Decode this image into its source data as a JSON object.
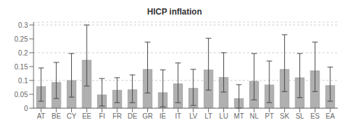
{
  "chart_data": {
    "type": "bar",
    "title": "HICP inflation",
    "categories": [
      "AT",
      "BE",
      "CY",
      "EE",
      "FI",
      "FR",
      "DE",
      "GR",
      "IE",
      "IT",
      "LV",
      "LT",
      "LU",
      "MT",
      "NL",
      "PT",
      "SK",
      "SL",
      "ES",
      "EA"
    ],
    "values": [
      0.078,
      0.093,
      0.1,
      0.173,
      0.048,
      0.065,
      0.067,
      0.14,
      0.056,
      0.088,
      0.072,
      0.138,
      0.111,
      0.035,
      0.097,
      0.084,
      0.14,
      0.11,
      0.135,
      0.082
    ],
    "error_upper": [
      0.145,
      0.165,
      0.197,
      0.3,
      0.107,
      0.11,
      0.12,
      0.238,
      0.138,
      0.163,
      0.14,
      0.252,
      0.2,
      0.085,
      0.197,
      0.17,
      0.265,
      0.197,
      0.238,
      0.148
    ],
    "error_lower": [
      0.025,
      0.035,
      0.04,
      0.08,
      0.008,
      0.02,
      0.02,
      0.055,
      0.005,
      0.02,
      0.01,
      0.065,
      0.058,
      0.0,
      0.03,
      0.02,
      0.06,
      0.038,
      0.06,
      0.025
    ],
    "color": "#b0b0b0",
    "ylim": [
      0,
      0.31
    ],
    "yticks": [
      0,
      0.05,
      0.1,
      0.15,
      0.2,
      0.25,
      0.3
    ],
    "grid": true
  }
}
